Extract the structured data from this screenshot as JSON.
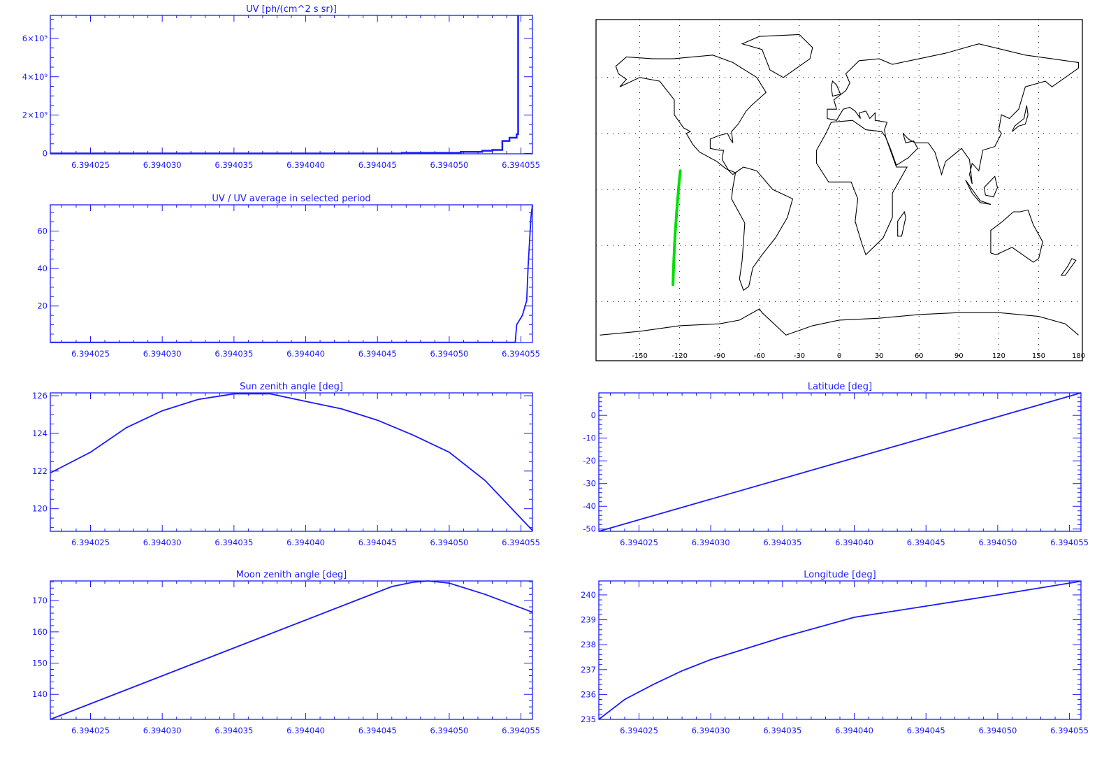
{
  "colors": {
    "axis": "#1a1aff",
    "line": "#1a1aff",
    "map": "#000000",
    "track": "#00e000",
    "grid": "#000000"
  },
  "chart_data": [
    {
      "id": "uv",
      "type": "line",
      "title": "UV [ph/(cm^2 s sr)]",
      "xlim": [
        6.3940222,
        6.3940558
      ],
      "ylim": [
        -20000000.0,
        7200000000.0
      ],
      "x_ticks": [
        6.394025,
        6.39403,
        6.394035,
        6.39404,
        6.394045,
        6.39405,
        6.394055
      ],
      "x_tick_labels": [
        "6.394025",
        "6.394030",
        "6.394035",
        "6.394040",
        "6.394045",
        "6.394050",
        "6.394055"
      ],
      "y_ticks": [
        0,
        2000000000.0,
        4000000000.0,
        6000000000.0
      ],
      "y_tick_labels": [
        "0",
        "2×10⁹",
        "4×10⁹",
        "6×10⁹"
      ],
      "y_minor": 500000000.0,
      "step": true,
      "x": [
        6.3940222,
        6.3940467,
        6.3940508,
        6.3940523,
        6.394053,
        6.3940537,
        6.3940542,
        6.3940547,
        6.3940548
      ],
      "y": [
        0.0,
        30000000.0,
        80000000.0,
        140000000.0,
        180000000.0,
        650000000.0,
        820000000.0,
        1000000000.0,
        7200000000.0
      ]
    },
    {
      "id": "uv-ratio",
      "type": "line",
      "title": "UV / UV average in selected period",
      "xlim": [
        6.3940222,
        6.3940558
      ],
      "ylim": [
        0.5,
        74
      ],
      "x_ticks": [
        6.394025,
        6.39403,
        6.394035,
        6.39404,
        6.394045,
        6.39405,
        6.394055
      ],
      "x_tick_labels": [
        "6.394025",
        "6.394030",
        "6.394035",
        "6.394040",
        "6.394045",
        "6.394050",
        "6.394055"
      ],
      "y_ticks": [
        20,
        40,
        60
      ],
      "y_tick_labels": [
        "20",
        "40",
        "60"
      ],
      "y_minor": 5,
      "x": [
        6.3940222,
        6.3940546,
        6.3940547,
        6.3940551,
        6.3940554,
        6.3940555,
        6.3940557,
        6.3940558
      ],
      "y": [
        0.6,
        0.6,
        10,
        15,
        23,
        41,
        67.6,
        74
      ]
    },
    {
      "id": "sun-zenith",
      "type": "line",
      "title": "Sun zenith angle [deg]",
      "xlim": [
        6.3940222,
        6.3940558
      ],
      "ylim": [
        118.8,
        126.15
      ],
      "x_ticks": [
        6.394025,
        6.39403,
        6.394035,
        6.39404,
        6.394045,
        6.39405,
        6.394055
      ],
      "x_tick_labels": [
        "6.394025",
        "6.394030",
        "6.394035",
        "6.394040",
        "6.394045",
        "6.394050",
        "6.394055"
      ],
      "y_ticks": [
        120,
        122,
        124,
        126
      ],
      "y_tick_labels": [
        "120",
        "122",
        "124",
        "126"
      ],
      "y_minor": 0.5,
      "x": [
        6.3940222,
        6.394025,
        6.3940275,
        6.39403,
        6.3940325,
        6.394035,
        6.3940375,
        6.39404,
        6.3940425,
        6.394045,
        6.3940475,
        6.39405,
        6.3940525,
        6.3940558
      ],
      "y": [
        121.9,
        123.0,
        124.3,
        125.2,
        125.8,
        126.1,
        126.1,
        125.7,
        125.3,
        124.7,
        123.9,
        123.0,
        121.5,
        118.85
      ]
    },
    {
      "id": "latitude",
      "type": "line",
      "title": "Latitude [deg]",
      "xlim": [
        6.3940222,
        6.3940558
      ],
      "ylim": [
        -51,
        9.9
      ],
      "x_ticks": [
        6.394025,
        6.39403,
        6.394035,
        6.39404,
        6.394045,
        6.39405,
        6.394055
      ],
      "x_tick_labels": [
        "6.394025",
        "6.394030",
        "6.394035",
        "6.394040",
        "6.394045",
        "6.394050",
        "6.394055"
      ],
      "y_ticks": [
        -50,
        -40,
        -30,
        -20,
        -10,
        0
      ],
      "y_tick_labels": [
        "-50",
        "-40",
        "-30",
        "-20",
        "-10",
        "0"
      ],
      "y_minor": 2,
      "x": [
        6.3940222,
        6.3940558
      ],
      "y": [
        -51,
        9.9
      ]
    },
    {
      "id": "moon-zenith",
      "type": "line",
      "title": "Moon zenith angle [deg]",
      "xlim": [
        6.3940222,
        6.3940558
      ],
      "ylim": [
        132,
        176.3
      ],
      "x_ticks": [
        6.394025,
        6.39403,
        6.394035,
        6.39404,
        6.394045,
        6.39405,
        6.394055
      ],
      "x_tick_labels": [
        "6.394025",
        "6.394030",
        "6.394035",
        "6.394040",
        "6.394045",
        "6.394050",
        "6.394055"
      ],
      "y_ticks": [
        140,
        150,
        160,
        170
      ],
      "y_tick_labels": [
        "140",
        "150",
        "160",
        "170"
      ],
      "y_minor": 2,
      "x": [
        6.3940222,
        6.394046,
        6.3940475,
        6.3940485,
        6.39405,
        6.3940525,
        6.3940558
      ],
      "y": [
        132,
        174.5,
        175.9,
        176.3,
        175.6,
        172.0,
        166.3
      ]
    },
    {
      "id": "longitude",
      "type": "line",
      "title": "Longitude [deg]",
      "xlim": [
        6.3940222,
        6.3940558
      ],
      "ylim": [
        235.0,
        240.56
      ],
      "x_ticks": [
        6.394025,
        6.39403,
        6.394035,
        6.39404,
        6.394045,
        6.39405,
        6.394055
      ],
      "x_tick_labels": [
        "6.394025",
        "6.394030",
        "6.394035",
        "6.394040",
        "6.394045",
        "6.394050",
        "6.394055"
      ],
      "y_ticks": [
        235,
        236,
        237,
        238,
        239,
        240
      ],
      "y_tick_labels": [
        "235",
        "236",
        "237",
        "238",
        "239",
        "240"
      ],
      "y_minor": 0.2,
      "x": [
        6.3940222,
        6.394024,
        6.394026,
        6.394028,
        6.39403,
        6.394035,
        6.39404,
        6.394045,
        6.39405,
        6.3940558
      ],
      "y": [
        235.0,
        235.8,
        236.4,
        236.95,
        237.4,
        238.3,
        239.1,
        239.55,
        240.0,
        240.55
      ]
    }
  ],
  "map": {
    "type": "map",
    "projection": "cylindrical",
    "lon_ticks": [
      -150,
      -120,
      -90,
      -60,
      -30,
      0,
      30,
      60,
      90,
      120,
      150,
      180
    ],
    "lon_tick_labels": [
      "-150",
      "-120",
      "-90",
      "-60",
      "-30",
      "0",
      "30",
      "60",
      "90",
      "120",
      "150",
      "180"
    ],
    "lat_grid": [
      -60,
      -30,
      0,
      30,
      60
    ],
    "track": {
      "lon": [
        -125,
        -124.5,
        -123.5,
        -122,
        -120.5,
        -119.5
      ],
      "lat": [
        -51,
        -40,
        -25,
        -10,
        3,
        10
      ]
    }
  }
}
